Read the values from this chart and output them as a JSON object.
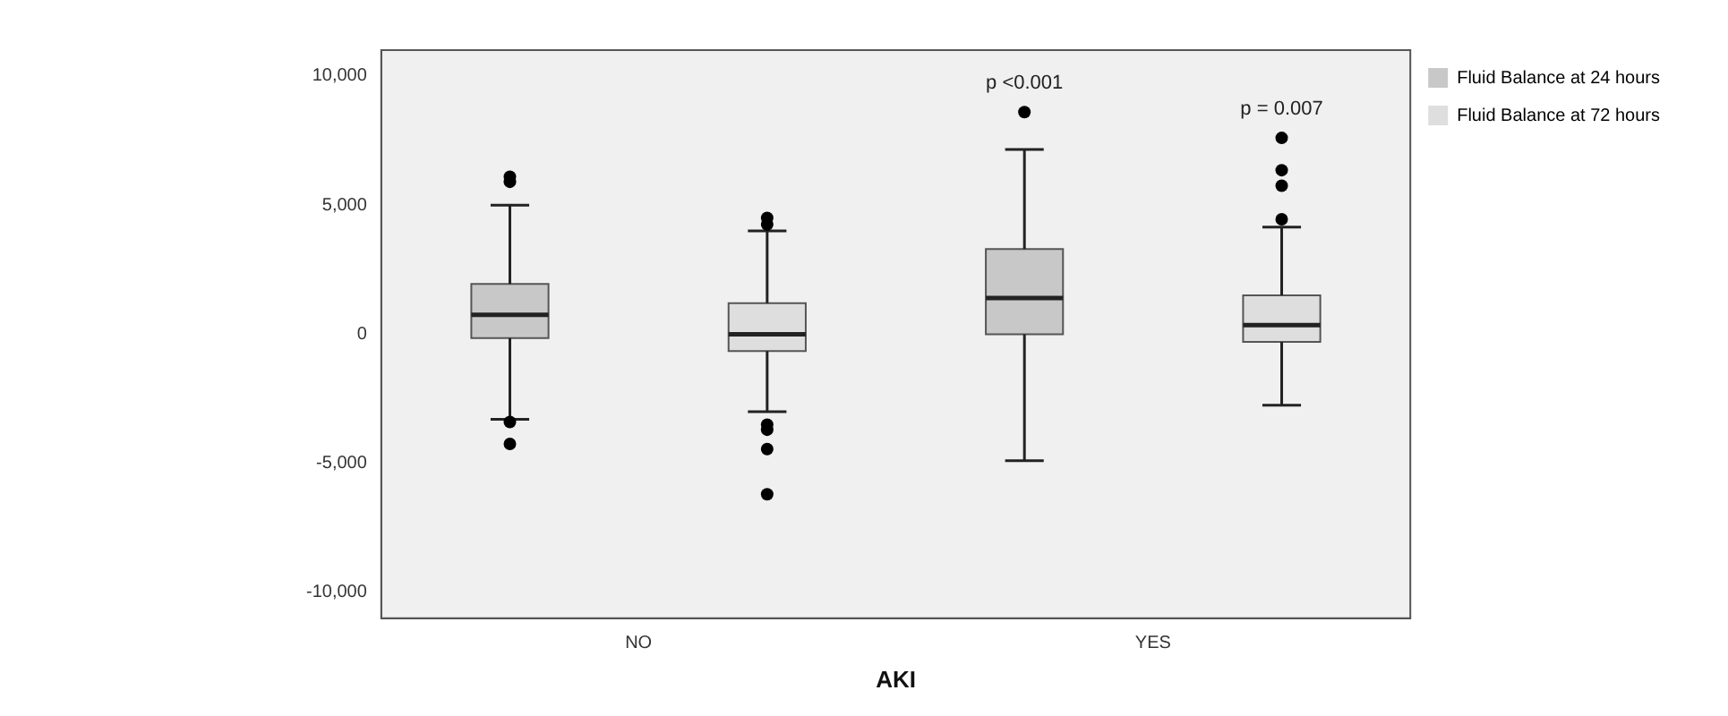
{
  "chart_data": {
    "type": "box",
    "xlabel": "AKI",
    "categories": [
      "NO",
      "YES"
    ],
    "series": [
      {
        "name": "Fluid Balance at 24 hours",
        "color": "#c8c8c8",
        "boxes": [
          {
            "low": -3300,
            "q1": -150,
            "median": 750,
            "q3": 1950,
            "high": 5000,
            "outliers": [
              6100,
              5900,
              -3400,
              -4250
            ]
          },
          {
            "low": -4900,
            "q1": 0,
            "median": 1400,
            "q3": 3300,
            "high": 7150,
            "outliers": [
              8600
            ]
          }
        ]
      },
      {
        "name": "Fluid Balance at 72 hours",
        "color": "#dedede",
        "boxes": [
          {
            "low": -3000,
            "q1": -650,
            "median": 0,
            "q3": 1200,
            "high": 4000,
            "outliers": [
              4500,
              4250,
              -3500,
              -3700,
              -4450,
              -6200
            ]
          },
          {
            "low": -2750,
            "q1": -300,
            "median": 350,
            "q3": 1500,
            "high": 4150,
            "outliers": [
              4450,
              5750,
              6350,
              7600
            ]
          }
        ]
      }
    ],
    "ylim": [
      -11000,
      11000
    ],
    "yticks": [
      {
        "value": -10000,
        "label": "-10,000"
      },
      {
        "value": -5000,
        "label": "-5,000"
      },
      0,
      {
        "value": 5000,
        "label": "5,000"
      },
      {
        "value": 10000,
        "label": "10,000"
      }
    ],
    "grid": false,
    "legend": "top right",
    "annotations": [
      "p <0.001",
      "p = 0.007"
    ]
  }
}
